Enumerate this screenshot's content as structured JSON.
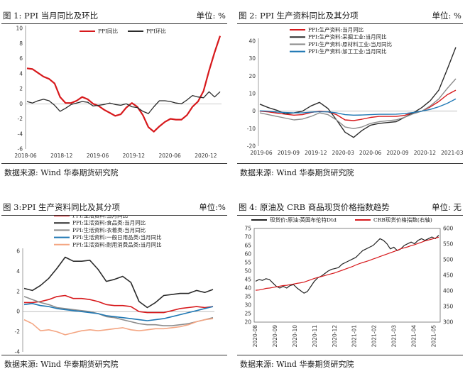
{
  "panels": [
    {
      "title": "图 1: PPI 当月同比及环比",
      "unit": "单位: %",
      "source": "数据来源:  Wind  华泰期货研究院"
    },
    {
      "title": "图 2: PPI 生产资料同比及其分项",
      "unit": "单位: %",
      "source": "数据来源:  Wind  华泰期货研究院"
    },
    {
      "title": "图 3:PPI 生产资料同比及其分项",
      "unit": "单位:%",
      "source": "数据来源:  Wind  华泰期货研究院"
    },
    {
      "title": "图 4:  原油及 CRB 商品现货价格指数趋势",
      "unit": "单位: 无",
      "source": "数据来源:  Wind  华泰期货研究院"
    }
  ],
  "chart_data": [
    {
      "type": "line",
      "id": "c1",
      "x": [
        "2018-06",
        "2018-07",
        "2018-08",
        "2018-09",
        "2018-10",
        "2018-11",
        "2018-12",
        "2019-01",
        "2019-02",
        "2019-03",
        "2019-04",
        "2019-05",
        "2019-06",
        "2019-07",
        "2019-08",
        "2019-09",
        "2019-10",
        "2019-11",
        "2019-12",
        "2020-01",
        "2020-02",
        "2020-03",
        "2020-04",
        "2020-05",
        "2020-06",
        "2020-07",
        "2020-08",
        "2020-09",
        "2020-10",
        "2020-11",
        "2020-12",
        "2021-01",
        "2021-02",
        "2021-03",
        "2021-04",
        "2021-05"
      ],
      "x_tick_labels": [
        "2018-06",
        "2018-12",
        "2019-06",
        "2019-12",
        "2020-06",
        "2020-12"
      ],
      "ylim": [
        -6,
        10
      ],
      "yticks": [
        -6,
        -4,
        -2,
        0,
        2,
        4,
        6,
        8,
        10
      ],
      "series": [
        {
          "name": "PPI同比",
          "color": "#d7191c",
          "width": 2.2,
          "values": [
            4.7,
            4.6,
            4.1,
            3.6,
            3.3,
            2.7,
            0.9,
            0.1,
            0.1,
            0.4,
            0.9,
            0.6,
            0.0,
            -0.3,
            -0.8,
            -1.2,
            -1.6,
            -1.4,
            -0.5,
            0.1,
            -0.4,
            -1.5,
            -3.1,
            -3.7,
            -3.0,
            -2.4,
            -2.0,
            -2.1,
            -2.1,
            -1.5,
            -0.4,
            0.3,
            1.7,
            4.4,
            6.8,
            9.0
          ]
        },
        {
          "name": "PPI环比",
          "color": "#2b2b2b",
          "width": 1.3,
          "values": [
            0.3,
            0.1,
            0.4,
            0.6,
            0.4,
            -0.2,
            -1.0,
            -0.6,
            -0.1,
            0.1,
            0.3,
            0.2,
            -0.3,
            -0.2,
            -0.1,
            0.1,
            -0.1,
            -0.2,
            0.0,
            -0.4,
            -0.5,
            -1.0,
            -1.3,
            -0.4,
            0.4,
            0.4,
            0.3,
            0.1,
            0.0,
            0.5,
            1.1,
            0.9,
            0.8,
            1.6,
            0.9,
            1.6
          ]
        }
      ]
    },
    {
      "type": "line",
      "id": "c2",
      "x_tick_labels": [
        "2019-06",
        "2019-09",
        "2019-12",
        "2020-03",
        "2020-06",
        "2020-09",
        "2020-12",
        "2021-03"
      ],
      "ylim": [
        -20,
        40
      ],
      "yticks": [
        -20,
        -10,
        0,
        10,
        20,
        30,
        40
      ],
      "series": [
        {
          "name": "PPI:生产资料:当月同比",
          "color": "#d7191c",
          "width": 1.4,
          "values": [
            0.0,
            -0.4,
            -1.1,
            -1.7,
            -2.3,
            -2.0,
            -0.8,
            0.0,
            -0.4,
            -2.0,
            -5.0,
            -5.4,
            -4.6,
            -3.6,
            -3.0,
            -3.0,
            -3.0,
            -2.4,
            -0.9,
            0.0,
            2.4,
            5.5,
            9.4,
            12.0
          ]
        },
        {
          "name": "PPI:生产资料:采掘工业:当月同比",
          "color": "#2b2b2b",
          "width": 1.4,
          "values": [
            4.0,
            2.0,
            0.5,
            -1.5,
            -1.0,
            0.0,
            3.0,
            5.0,
            1.5,
            -5.0,
            -12.0,
            -15.0,
            -11.0,
            -8.0,
            -7.0,
            -6.5,
            -6.0,
            -3.5,
            -1.0,
            2.0,
            6.0,
            12.0,
            24.0,
            36.5
          ]
        },
        {
          "name": "PPI:生产资料:原材料工业:当月同比",
          "color": "#8c8c8c",
          "width": 1.4,
          "values": [
            -1.0,
            -2.0,
            -3.0,
            -4.0,
            -5.0,
            -4.5,
            -3.0,
            -1.0,
            -2.0,
            -5.0,
            -9.0,
            -10.0,
            -9.0,
            -7.0,
            -6.0,
            -5.5,
            -5.0,
            -3.5,
            -1.5,
            0.0,
            3.0,
            7.0,
            13.0,
            18.5
          ]
        },
        {
          "name": "PPI:生产资料:加工工业:当月同比",
          "color": "#1f78b4",
          "width": 1.4,
          "values": [
            0.2,
            0.0,
            -0.5,
            -0.8,
            -1.0,
            -1.0,
            -0.6,
            -0.3,
            -0.4,
            -1.0,
            -2.0,
            -2.3,
            -2.2,
            -2.0,
            -1.8,
            -1.8,
            -1.7,
            -1.4,
            -0.8,
            0.0,
            1.0,
            2.5,
            4.5,
            7.0
          ]
        }
      ]
    },
    {
      "type": "line",
      "id": "c3",
      "x_tick_labels": [
        "2019-06",
        "2019-11",
        "2020-04",
        "2020-09",
        "2021-02"
      ],
      "ylim": [
        -4,
        6
      ],
      "yticks": [
        -4,
        -2,
        0,
        2,
        4,
        6
      ],
      "series": [
        {
          "name": "PPI:生活资料:当月同比",
          "color": "#d7191c",
          "width": 1.6,
          "values": [
            0.9,
            0.9,
            1.0,
            1.2,
            1.5,
            1.6,
            1.3,
            1.3,
            1.2,
            1.0,
            0.7,
            0.6,
            0.6,
            0.5,
            0.0,
            -0.1,
            -0.1,
            -0.1,
            0.1,
            0.3,
            0.4,
            0.5,
            0.4,
            0.5
          ]
        },
        {
          "name": "PPI:生活资料:食品类:当月同比",
          "color": "#2b2b2b",
          "width": 1.6,
          "values": [
            2.3,
            2.1,
            2.6,
            3.3,
            4.3,
            5.4,
            5.0,
            5.0,
            5.1,
            4.2,
            3.0,
            3.2,
            3.5,
            2.9,
            1.0,
            0.4,
            0.9,
            1.6,
            1.7,
            1.8,
            1.8,
            2.1,
            1.9,
            2.2
          ]
        },
        {
          "name": "PPI:生活资料:衣着类:当月同比",
          "color": "#8c8c8c",
          "width": 1.6,
          "values": [
            1.5,
            1.2,
            0.9,
            0.7,
            0.4,
            0.3,
            0.2,
            0.1,
            0.0,
            -0.2,
            -0.5,
            -0.6,
            -0.8,
            -1.0,
            -1.2,
            -1.3,
            -1.3,
            -1.4,
            -1.4,
            -1.3,
            -1.2,
            -1.0,
            -0.8,
            -0.6
          ]
        },
        {
          "name": "PPI:生活资料:一般日用品类:当月同比",
          "color": "#1f78b4",
          "width": 1.6,
          "values": [
            0.7,
            0.8,
            0.6,
            0.5,
            0.3,
            0.2,
            0.1,
            0.0,
            -0.1,
            -0.2,
            -0.4,
            -0.5,
            -0.6,
            -0.7,
            -0.8,
            -0.9,
            -0.8,
            -0.7,
            -0.5,
            -0.3,
            -0.1,
            0.1,
            0.3,
            0.5
          ]
        },
        {
          "name": "PPI:生活资料:耐用消费品类:当月同比",
          "color": "#f4a582",
          "width": 1.6,
          "values": [
            -0.8,
            -1.2,
            -1.9,
            -1.8,
            -2.0,
            -2.3,
            -2.1,
            -1.9,
            -1.8,
            -1.9,
            -1.8,
            -1.7,
            -1.6,
            -1.8,
            -1.9,
            -1.8,
            -1.7,
            -1.7,
            -1.6,
            -1.5,
            -1.3,
            -1.0,
            -0.8,
            -0.7
          ]
        }
      ]
    },
    {
      "type": "line",
      "id": "c4",
      "x_tick_labels": [
        "2020-08",
        "2020-09",
        "2020-10",
        "2020-11",
        "2020-12",
        "2021-01",
        "2021-02",
        "2021-03",
        "2021-04",
        "2021-05"
      ],
      "ylim": [
        20,
        75
      ],
      "yticks": [
        20,
        25,
        30,
        35,
        40,
        45,
        50,
        55,
        60,
        65,
        70,
        75
      ],
      "y2lim": [
        300,
        600
      ],
      "y2ticks": [
        300,
        350,
        400,
        450,
        500,
        550,
        600
      ],
      "series": [
        {
          "name": "现货价:原油:英国布伦特Dtd",
          "color": "#222222",
          "width": 1.2,
          "axis": "left",
          "values": [
            44,
            45,
            44.5,
            45.5,
            45,
            43,
            41,
            40,
            41,
            40,
            41.5,
            42,
            40,
            38.5,
            37,
            38,
            41,
            44,
            46,
            47,
            48.5,
            50,
            51,
            51.5,
            52,
            54,
            55,
            56,
            57,
            58,
            60,
            62,
            63,
            64,
            65,
            67,
            69,
            68,
            66,
            63,
            64,
            62,
            63,
            65,
            66,
            67,
            66,
            68,
            69,
            68,
            69,
            70,
            69,
            71
          ]
        },
        {
          "name": "CRB现货价格指数(右轴)",
          "color": "#d7191c",
          "width": 1.2,
          "axis": "right",
          "values": [
            402,
            403,
            405,
            408,
            409,
            411,
            413,
            415,
            417,
            418,
            420,
            422,
            424,
            426,
            428,
            432,
            436,
            440,
            443,
            446,
            449,
            452,
            455,
            458,
            462,
            466,
            470,
            474,
            478,
            483,
            487,
            491,
            494,
            498,
            502,
            506,
            510,
            514,
            518,
            522,
            526,
            530,
            535,
            538,
            541,
            545,
            548,
            552,
            556,
            560,
            563,
            566,
            569,
            572
          ]
        }
      ]
    }
  ]
}
